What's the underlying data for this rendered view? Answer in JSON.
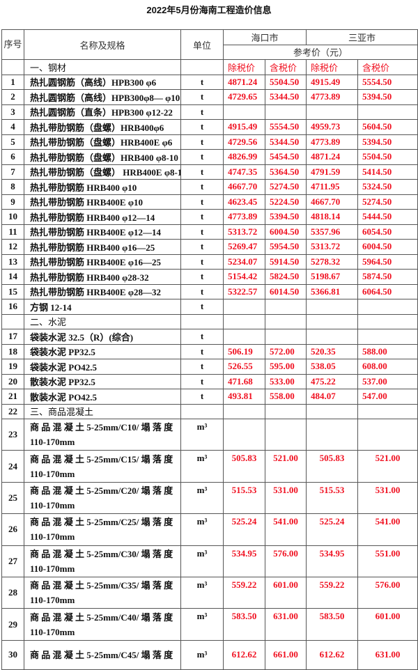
{
  "title": "2022年5月份海南工程造价信息",
  "header": {
    "seq": "序号",
    "name": "名称及规格",
    "unit": "单位",
    "haikou": "海口市",
    "sanya": "三亚市",
    "ref_price": "参考价（元）",
    "ex_tax": "除税价",
    "inc_tax": "含税价"
  },
  "rows": [
    {
      "type": "section",
      "name": "一、钢材",
      "price_header": true
    },
    {
      "no": "1",
      "name": "热扎圆钢筋（高线）HPB300 φ6",
      "unit": "t",
      "v": [
        "4871.24",
        "5504.50",
        "4915.49",
        "5554.50"
      ]
    },
    {
      "no": "2",
      "name": "热扎圆钢筋（高线）HPB300φ8— φ10",
      "unit": "t",
      "v": [
        "4729.65",
        "5344.50",
        "4773.89",
        "5394.50"
      ]
    },
    {
      "no": "3",
      "name": "热扎圆钢筋（直条）HPB300 φ12-22",
      "unit": "t",
      "v": [
        "",
        "",
        "",
        ""
      ]
    },
    {
      "no": "4",
      "name": "热扎带肋钢筋（盘螺）HRB400φ6",
      "unit": "t",
      "v": [
        "4915.49",
        "5554.50",
        "4959.73",
        "5604.50"
      ]
    },
    {
      "no": "5",
      "name": "热扎带肋钢筋（盘螺）HRB400E φ6",
      "unit": "t",
      "v": [
        "4729.56",
        "5344.50",
        "4773.89",
        "5394.50"
      ]
    },
    {
      "no": "6",
      "name": "热扎带肋钢筋（盘螺）HRB400 φ8-10",
      "unit": "t",
      "v": [
        "4826.99",
        "5454.50",
        "4871.24",
        "5504.50"
      ]
    },
    {
      "no": "7",
      "name": "热扎带肋钢筋（盘螺） HRB400E φ8-10",
      "unit": "t",
      "v": [
        "4747.35",
        "5364.50",
        "4791.59",
        "5414.50"
      ]
    },
    {
      "no": "8",
      "name": "热扎带肋钢筋 HRB400   φ10",
      "unit": "t",
      "v": [
        "4667.70",
        "5274.50",
        "4711.95",
        "5324.50"
      ]
    },
    {
      "no": "9",
      "name": "热扎带肋钢筋 HRB400E   φ10",
      "unit": "t",
      "v": [
        "4623.45",
        "5224.50",
        "4667.70",
        "5274.50"
      ]
    },
    {
      "no": "10",
      "name": "热扎带肋钢筋 HRB400    φ12—14",
      "unit": "t",
      "v": [
        "4773.89",
        "5394.50",
        "4818.14",
        "5444.50"
      ]
    },
    {
      "no": "11",
      "name": "热扎带肋钢筋 HRB400E   φ12—14",
      "unit": "t",
      "v": [
        "5313.72",
        "6004.50",
        "5357.96",
        "6054.50"
      ]
    },
    {
      "no": "12",
      "name": "热扎带肋钢筋 HRB400    φ16—25",
      "unit": "t",
      "v": [
        "5269.47",
        "5954.50",
        "5313.72",
        "6004.50"
      ]
    },
    {
      "no": "13",
      "name": "热扎带肋钢筋 HRB400E   φ16—25",
      "unit": "t",
      "v": [
        "5234.07",
        "5914.50",
        "5278.32",
        "5964.50"
      ]
    },
    {
      "no": "14",
      "name": "热扎带肋钢筋 HRB400   φ28-32",
      "unit": "t",
      "v": [
        "5154.42",
        "5824.50",
        "5198.67",
        "5874.50"
      ]
    },
    {
      "no": "15",
      "name": "热扎带肋钢筋 HRB400E   φ28—32",
      "unit": "t",
      "v": [
        "5322.57",
        "6014.50",
        "5366.81",
        "6064.50"
      ]
    },
    {
      "no": "16",
      "name": "方钢   12-14",
      "unit": "t",
      "v": [
        "",
        "",
        "",
        ""
      ]
    },
    {
      "type": "section",
      "no": "",
      "name": "二、水泥"
    },
    {
      "no": "17",
      "name": "袋装水泥 32.5（R）(综合)",
      "unit": "t",
      "v": [
        "",
        "",
        "",
        ""
      ]
    },
    {
      "no": "18",
      "name": "袋装水泥 PP32.5",
      "unit": "t",
      "v": [
        "506.19",
        "572.00",
        "520.35",
        "588.00"
      ]
    },
    {
      "no": "19",
      "name": "袋装水泥 PO42.5",
      "unit": "t",
      "v": [
        "526.55",
        "595.00",
        "538.05",
        "608.00"
      ]
    },
    {
      "no": "20",
      "name": "散装水泥 PP32.5",
      "unit": "t",
      "v": [
        "471.68",
        "533.00",
        "475.22",
        "537.00"
      ]
    },
    {
      "no": "21",
      "name": "散装水泥 PO42.5",
      "unit": "t",
      "v": [
        "493.81",
        "558.00",
        "484.07",
        "547.00"
      ]
    },
    {
      "type": "section",
      "no": "22",
      "name": "三、商品混凝土"
    },
    {
      "tall": true,
      "no": "23",
      "name": "商 品 混 凝 土 5-25mm/C10/ 塌 落 度 110-170mm",
      "unit": "m³",
      "v": [
        "",
        "",
        "",
        ""
      ]
    },
    {
      "tall": true,
      "no": "24",
      "name": "商 品 混 凝 土 5-25mm/C15/ 塌 落 度 110-170mm",
      "unit": "m³",
      "v": [
        "505.83",
        "521.00",
        "505.83",
        "521.00"
      ]
    },
    {
      "tall": true,
      "no": "25",
      "name": "商 品 混 凝 土 5-25mm/C20/ 塌 落 度 110-170mm",
      "unit": "m³",
      "v": [
        "515.53",
        "531.00",
        "515.53",
        "531.00"
      ]
    },
    {
      "tall": true,
      "no": "26",
      "name": "商 品 混 凝 土 5-25mm/C25/ 塌 落 度 110-170mm",
      "unit": "m³",
      "v": [
        "525.24",
        "541.00",
        "525.24",
        "541.00"
      ]
    },
    {
      "tall": true,
      "no": "27",
      "name": "商 品 混 凝 土 5-25mm/C30/ 塌 落 度 110-170mm",
      "unit": "m³",
      "v": [
        "534.95",
        "576.00",
        "534.95",
        "551.00"
      ]
    },
    {
      "tall": true,
      "no": "28",
      "name": "商 品 混 凝 土 5-25mm/C35/ 塌 落 度 110-170mm",
      "unit": "m³",
      "v": [
        "559.22",
        "601.00",
        "559.22",
        "576.00"
      ]
    },
    {
      "tall": true,
      "no": "29",
      "name": "商 品 混 凝 土 5-25mm/C40/ 塌 落 度 110-170mm",
      "unit": "m³",
      "v": [
        "583.50",
        "631.00",
        "583.50",
        "601.00"
      ]
    },
    {
      "tall": true,
      "no": "30",
      "name": "商 品 混 凝 土 5-25mm/C45/ 塌 落 度",
      "unit": "m³",
      "v": [
        "612.62",
        "661.00",
        "612.62",
        "631.00"
      ],
      "center": true
    }
  ],
  "colors": {
    "price": "#f01020",
    "border": "#555555"
  }
}
